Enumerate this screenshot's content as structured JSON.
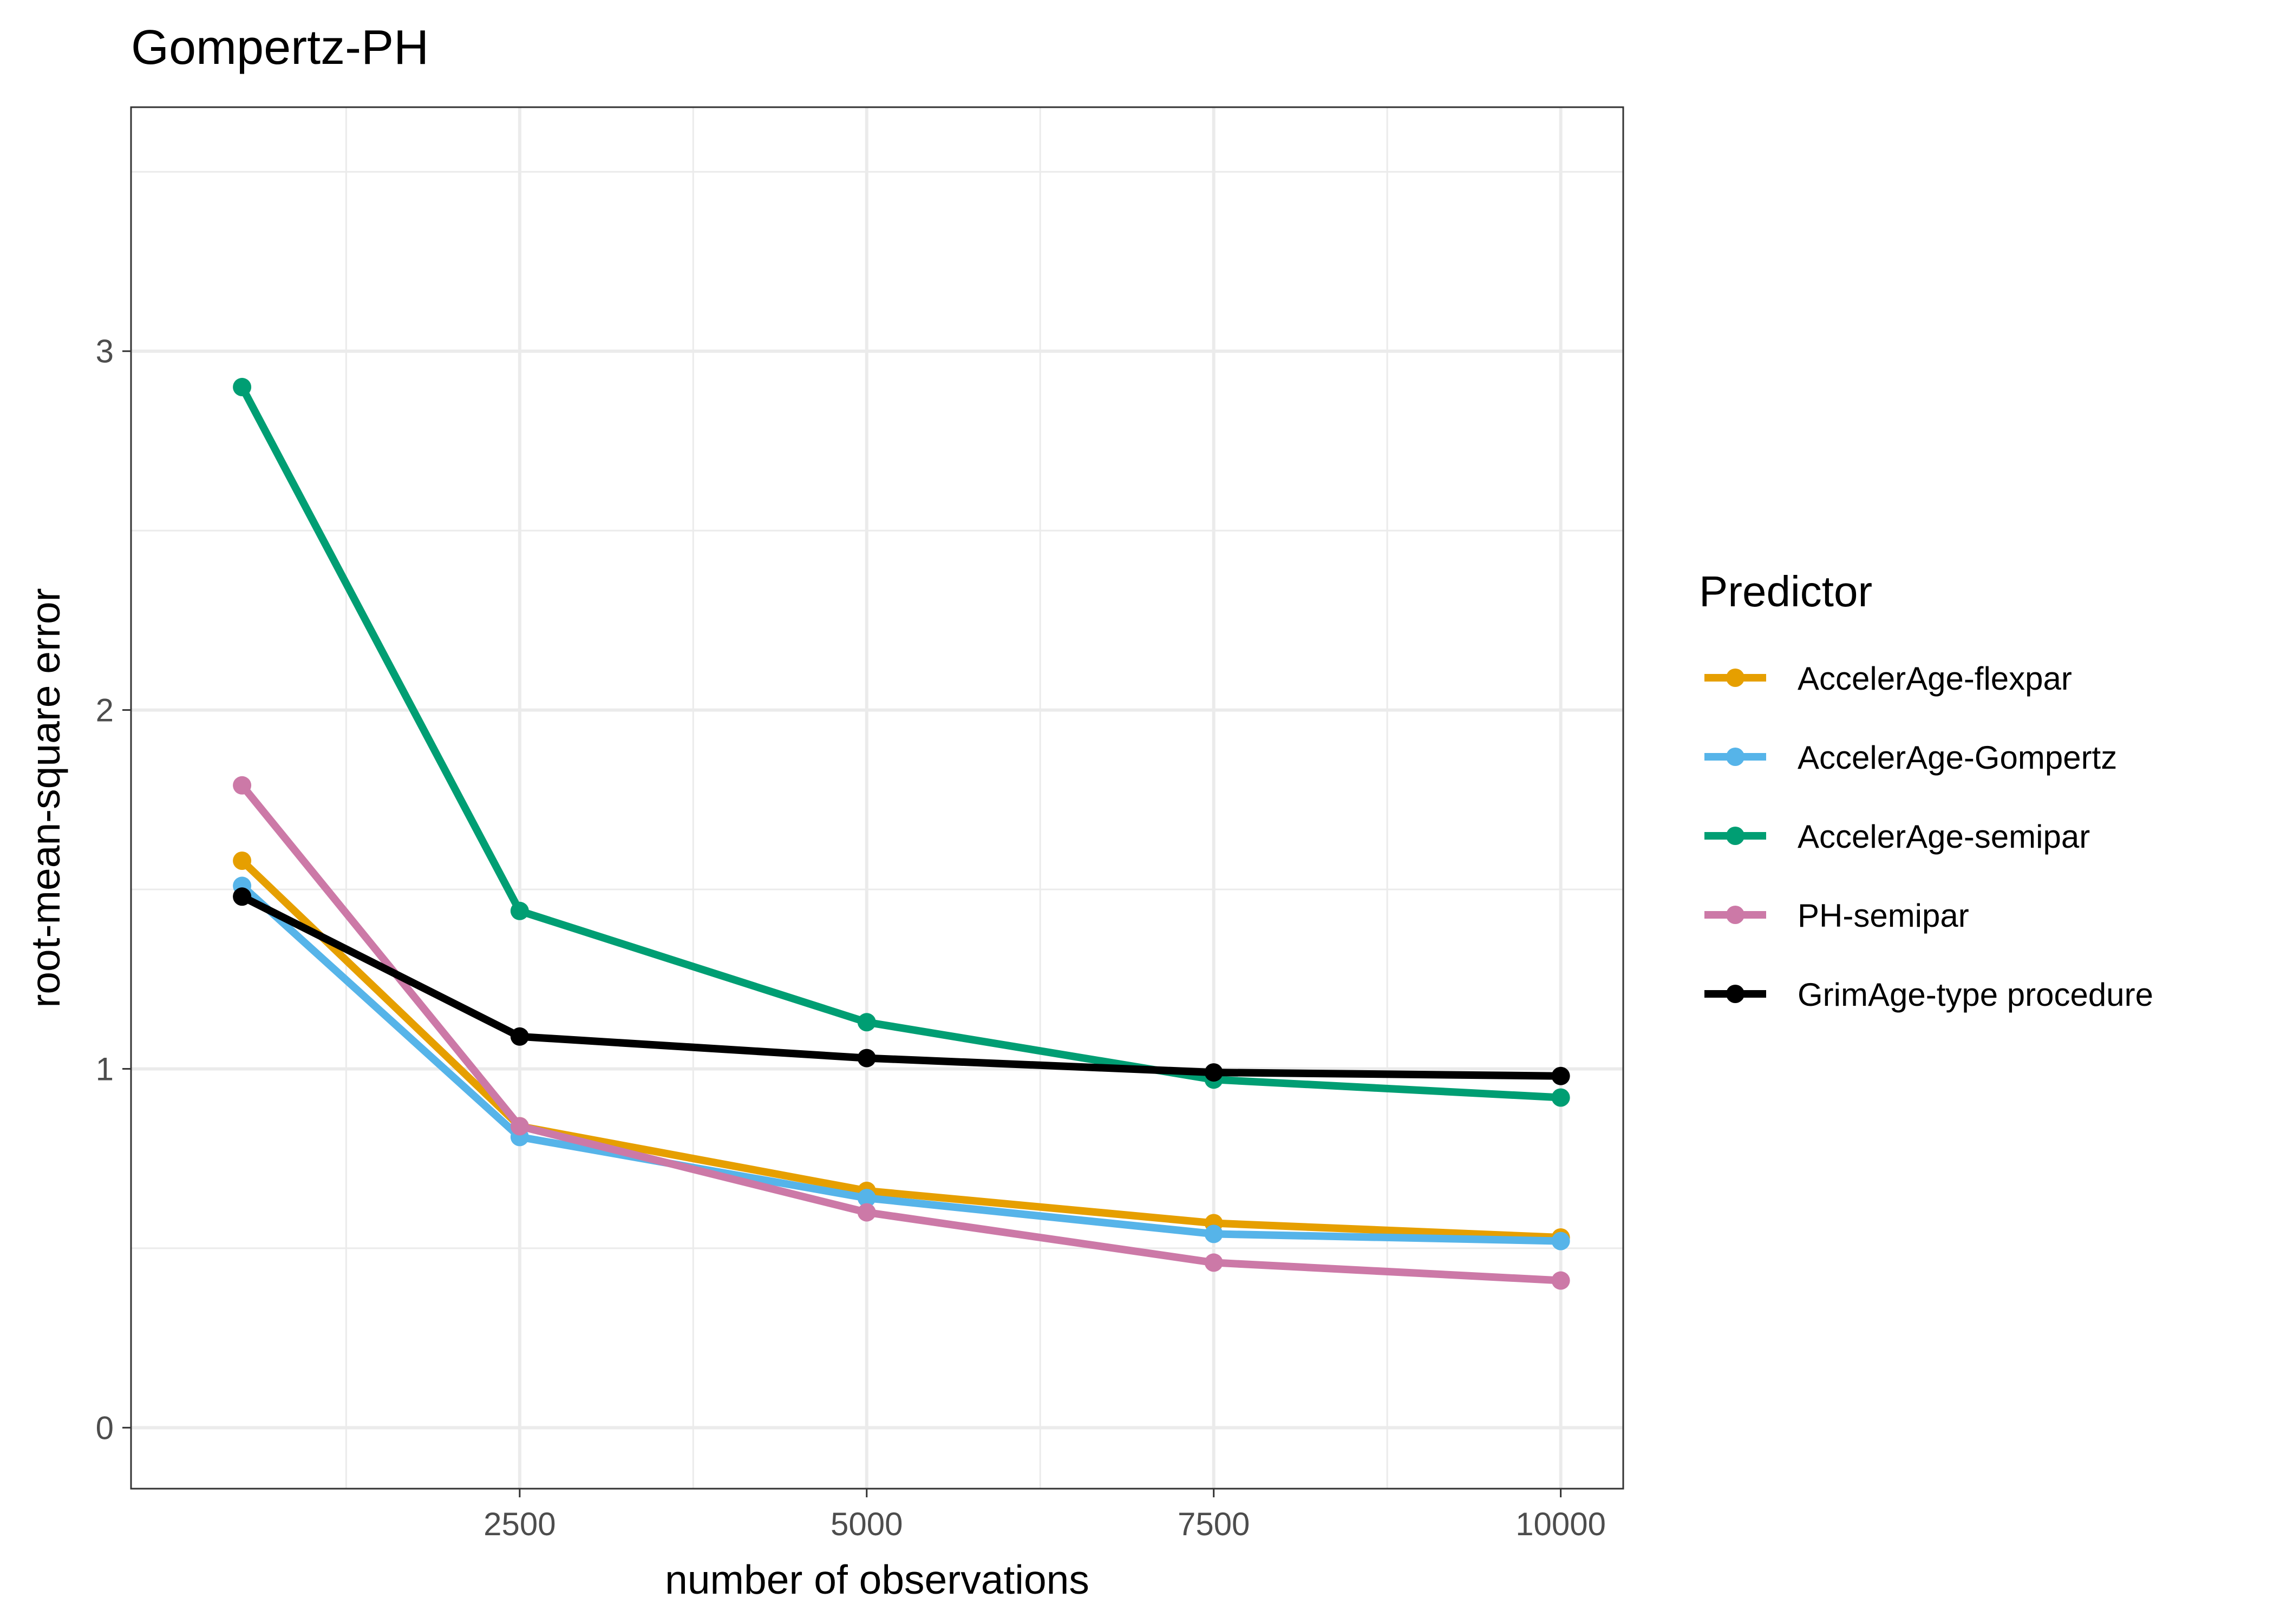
{
  "chart_data": {
    "type": "line",
    "title": "Gompertz-PH",
    "xlabel": "number of observations",
    "ylabel": "root-mean-square error",
    "x": [
      500,
      2500,
      5000,
      7500,
      10000
    ],
    "xlim": [
      -300,
      10450
    ],
    "ylim": [
      -0.17,
      3.68
    ],
    "x_ticks": [
      2500,
      5000,
      7500,
      10000
    ],
    "x_minor_ticks": [
      1250,
      3750,
      6250,
      8750
    ],
    "y_ticks": [
      0,
      1,
      2,
      3
    ],
    "y_minor_ticks": [
      0.5,
      1.5,
      2.5,
      3.5
    ],
    "grid": true,
    "legend": {
      "title": "Predictor",
      "placement": "right"
    },
    "series": [
      {
        "name": "AccelerAge-flexpar",
        "color": "#E69F00",
        "values": [
          1.58,
          0.84,
          0.66,
          0.57,
          0.53
        ]
      },
      {
        "name": "AccelerAge-Gompertz",
        "color": "#56B4E9",
        "values": [
          1.51,
          0.81,
          0.64,
          0.54,
          0.52
        ]
      },
      {
        "name": "AccelerAge-semipar",
        "color": "#009E73",
        "values": [
          2.9,
          1.44,
          1.13,
          0.97,
          0.92
        ]
      },
      {
        "name": "PH-semipar",
        "color": "#CC79A7",
        "values": [
          1.79,
          0.84,
          0.6,
          0.46,
          0.41
        ]
      },
      {
        "name": "GrimAge-type procedure",
        "color": "#000000",
        "values": [
          1.48,
          1.09,
          1.03,
          0.99,
          0.98
        ]
      }
    ]
  }
}
